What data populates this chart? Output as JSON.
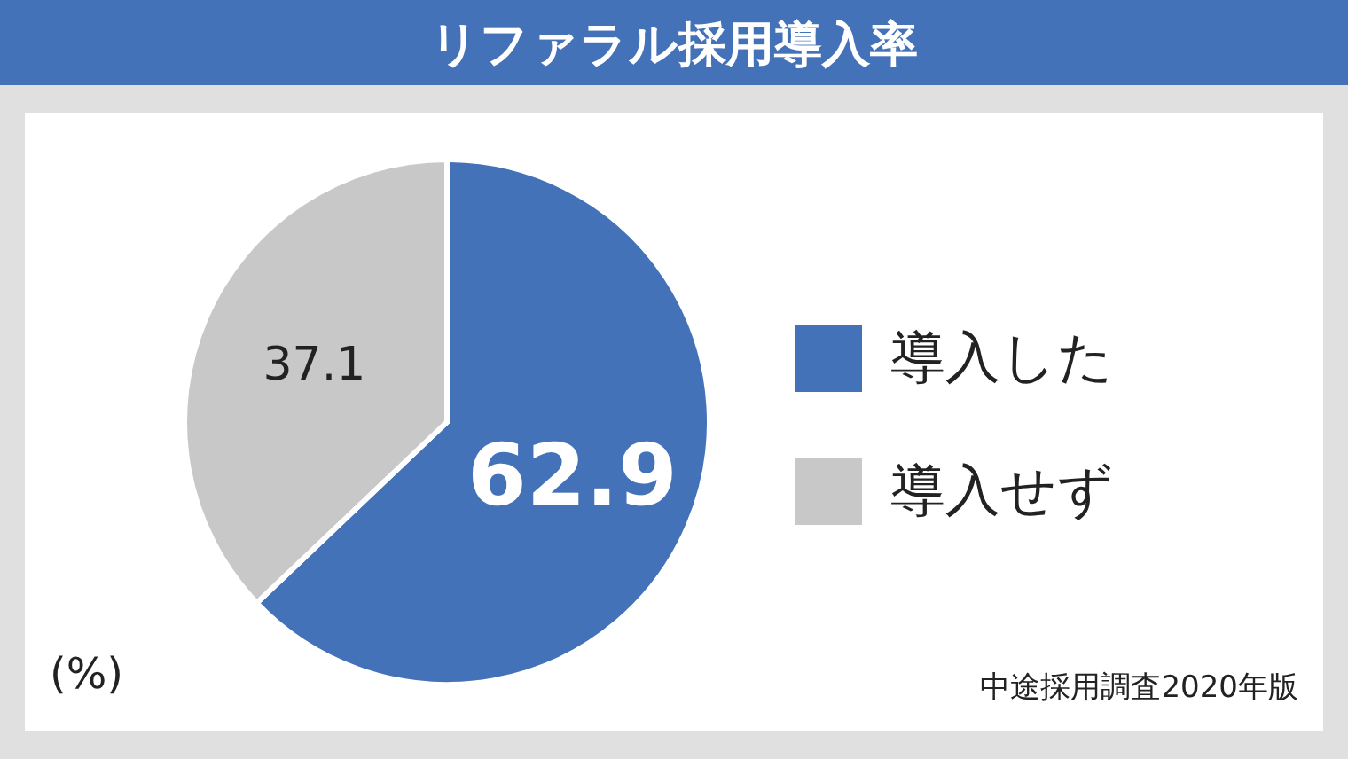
{
  "chart_data": {
    "type": "pie",
    "title": "リファラル採用導入率",
    "categories": [
      "導入した",
      "導入せず"
    ],
    "values": [
      62.9,
      37.1
    ],
    "colors": [
      "#4472b9",
      "#c8c8c8"
    ],
    "data_labels": true,
    "legend": "right",
    "annotations": [
      "(%)",
      "中途採用調査2020年版"
    ]
  }
}
